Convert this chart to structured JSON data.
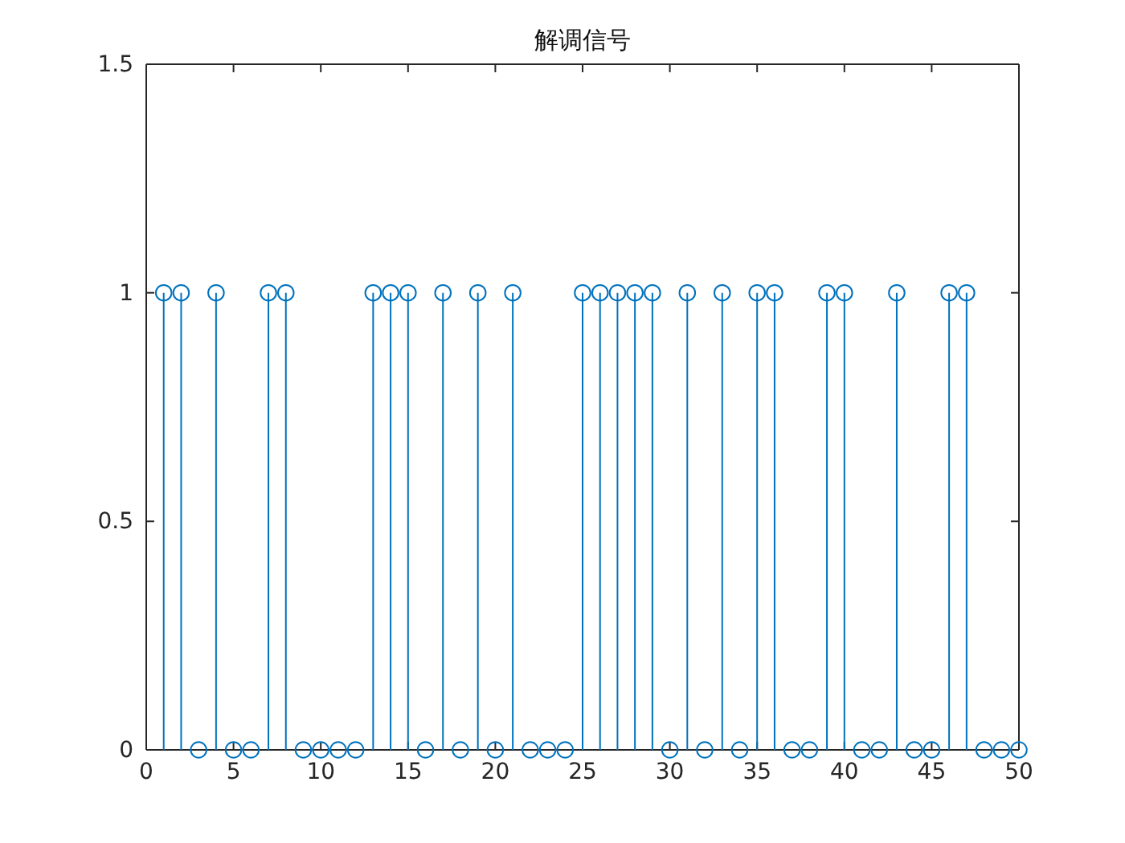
{
  "chart_data": {
    "type": "lollipop",
    "title": "解调信号",
    "x": [
      1,
      2,
      3,
      4,
      5,
      6,
      7,
      8,
      9,
      10,
      11,
      12,
      13,
      14,
      15,
      16,
      17,
      18,
      19,
      20,
      21,
      22,
      23,
      24,
      25,
      26,
      27,
      28,
      29,
      30,
      31,
      32,
      33,
      34,
      35,
      36,
      37,
      38,
      39,
      40,
      41,
      42,
      43,
      44,
      45,
      46,
      47,
      48,
      49,
      50
    ],
    "values": [
      1,
      1,
      0,
      1,
      0,
      0,
      1,
      1,
      0,
      0,
      0,
      0,
      1,
      1,
      1,
      0,
      1,
      0,
      1,
      0,
      1,
      0,
      0,
      0,
      1,
      1,
      1,
      1,
      1,
      0,
      1,
      0,
      1,
      0,
      1,
      1,
      0,
      0,
      1,
      1,
      0,
      0,
      1,
      0,
      0,
      1,
      1,
      0,
      0,
      0
    ],
    "color": "#0072bd",
    "marker": "circle",
    "xlim": [
      0,
      50
    ],
    "xticks": [
      0,
      5,
      10,
      15,
      20,
      25,
      30,
      35,
      40,
      45,
      50
    ],
    "ylim": [
      0,
      1.5
    ],
    "yticks": [
      0,
      0.5,
      1,
      1.5
    ],
    "grid": false
  }
}
